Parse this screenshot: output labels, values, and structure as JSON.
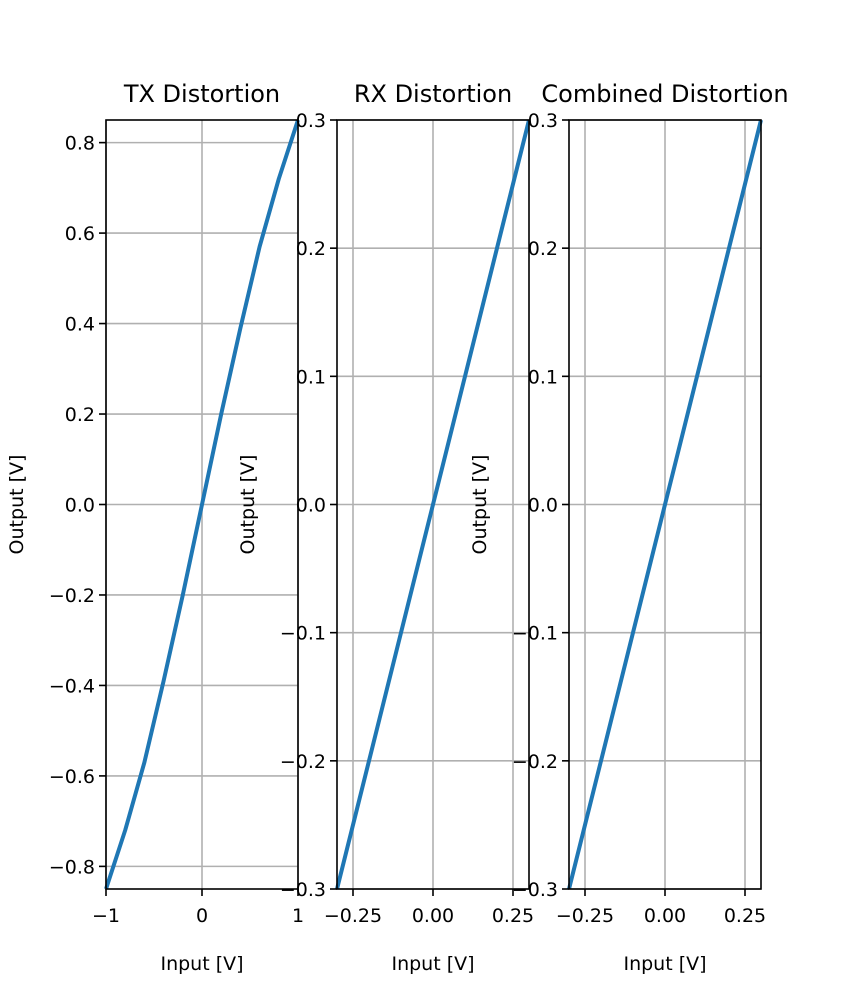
{
  "chart_data": [
    {
      "type": "line",
      "title": "TX Distortion",
      "xlabel": "Input [V]",
      "ylabel": "Output [V]",
      "xlim": [
        -1,
        1
      ],
      "ylim": [
        -0.85,
        0.85
      ],
      "xticks": [
        -1,
        0,
        1
      ],
      "xtick_labels": [
        "−1",
        "0",
        "1"
      ],
      "yticks": [
        -0.8,
        -0.6,
        -0.4,
        -0.2,
        0.0,
        0.2,
        0.4,
        0.6,
        0.8
      ],
      "ytick_labels": [
        "−0.8",
        "−0.6",
        "−0.4",
        "−0.2",
        "0.0",
        "0.2",
        "0.4",
        "0.6",
        "0.8"
      ],
      "grid": true,
      "color": "#1f77b4",
      "series": [
        {
          "x": [
            -1.0,
            -0.8,
            -0.6,
            -0.4,
            -0.2,
            0.0,
            0.2,
            0.4,
            0.6,
            0.8,
            1.0
          ],
          "y": [
            -0.85,
            -0.72,
            -0.57,
            -0.39,
            -0.2,
            0.0,
            0.2,
            0.39,
            0.57,
            0.72,
            0.85
          ]
        }
      ]
    },
    {
      "type": "line",
      "title": "RX Distortion",
      "xlabel": "Input [V]",
      "ylabel": "Output [V]",
      "xlim": [
        -0.3,
        0.3
      ],
      "ylim": [
        -0.3,
        0.3
      ],
      "xticks": [
        -0.25,
        0.0,
        0.25
      ],
      "xtick_labels": [
        "−0.25",
        "0.00",
        "0.25"
      ],
      "yticks": [
        -0.3,
        -0.2,
        -0.1,
        0.0,
        0.1,
        0.2,
        0.3
      ],
      "ytick_labels": [
        "−0.3",
        "−0.2",
        "−0.1",
        "0.0",
        "0.1",
        "0.2",
        "0.3"
      ],
      "grid": true,
      "color": "#1f77b4",
      "series": [
        {
          "x": [
            -0.3,
            -0.2,
            -0.1,
            0.0,
            0.1,
            0.2,
            0.3
          ],
          "y": [
            -0.3,
            -0.2,
            -0.1,
            0.0,
            0.1,
            0.2,
            0.3
          ]
        }
      ]
    },
    {
      "type": "line",
      "title": "Combined Distortion",
      "xlabel": "Input [V]",
      "ylabel": "Output [V]",
      "xlim": [
        -0.3,
        0.3
      ],
      "ylim": [
        -0.3,
        0.3
      ],
      "xticks": [
        -0.25,
        0.0,
        0.25
      ],
      "xtick_labels": [
        "−0.25",
        "0.00",
        "0.25"
      ],
      "yticks": [
        -0.3,
        -0.2,
        -0.1,
        0.0,
        0.1,
        0.2,
        0.3
      ],
      "ytick_labels": [
        "−0.3",
        "−0.2",
        "−0.1",
        "0.0",
        "0.1",
        "0.2",
        "0.3"
      ],
      "grid": true,
      "color": "#1f77b4",
      "series": [
        {
          "x": [
            -0.3,
            -0.2,
            -0.1,
            0.0,
            0.1,
            0.2,
            0.3
          ],
          "y": [
            -0.3,
            -0.2,
            -0.1,
            0.0,
            0.1,
            0.2,
            0.3
          ]
        }
      ]
    }
  ]
}
